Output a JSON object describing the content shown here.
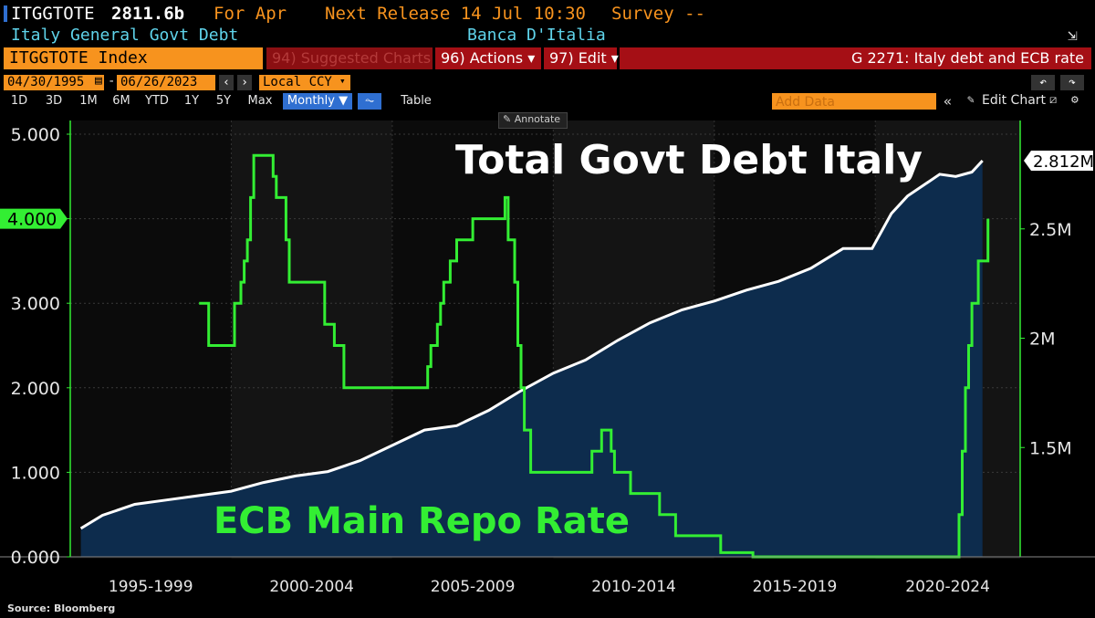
{
  "header": {
    "ticker": "ITGGTOTE",
    "last_value": "2811.6b",
    "for_label": "For Apr",
    "next_release": "Next Release 14 Jul 10:30",
    "survey": "Survey --",
    "description": "Italy General Govt Debt",
    "source_agency": "Banca D'Italia"
  },
  "command_bar": {
    "security": "ITGGTOTE Index",
    "suggested": "94) Suggested Charts",
    "actions": "96) Actions ▾",
    "edit": "97) Edit ▾",
    "chart_id": "G 2271: Italy debt and ECB rate"
  },
  "date_bar": {
    "start_date": "04/30/1995",
    "end_date": "06/26/2023",
    "currency": "Local CCY"
  },
  "range_buttons": [
    "1D",
    "3D",
    "1M",
    "6M",
    "YTD",
    "1Y",
    "5Y",
    "Max"
  ],
  "period_select": "Monthly ▼",
  "table_button": "Table",
  "add_data_placeholder": "Add Data",
  "edit_chart": "Edit Chart",
  "annotate": "Annotate",
  "source_note": "Source: Bloomberg",
  "colors": {
    "debt": "#ffffff",
    "rate": "#33ee33",
    "area": "#0d2c4d",
    "accent": "#f7931e"
  },
  "chart_data": {
    "type": "line",
    "title": "Total Govt Debt Italy",
    "annotation": "ECB Main Repo Rate",
    "x_tick_labels": [
      "1995-1999",
      "2000-2004",
      "2005-2009",
      "2010-2014",
      "2015-2019",
      "2020-2024"
    ],
    "left_axis": {
      "ticks": [
        "0.000",
        "1.000",
        "2.000",
        "3.000",
        "4.000",
        "5.000"
      ],
      "ylim": [
        0,
        5
      ],
      "highlight": "4.000"
    },
    "right_axis": {
      "ticks": [
        "1.5M",
        "2M",
        "2.5M"
      ],
      "ylim": [
        1000000,
        3000000
      ],
      "last_label": "2.812M"
    },
    "series": [
      {
        "axis": "right",
        "style": "area",
        "x": [
          1995.33,
          1996,
          1997,
          1998,
          1999,
          2000,
          2001,
          2002,
          2003,
          2004,
          2005,
          2006,
          2007,
          2008,
          2009,
          2010,
          2011,
          2012,
          2013,
          2014,
          2015,
          2016,
          2017,
          2018,
          2019,
          2019.9,
          2020.5,
          2021,
          2021.5,
          2022,
          2022.5,
          2023,
          2023.33
        ],
        "values": [
          1130000,
          1190000,
          1240000,
          1260000,
          1280000,
          1300000,
          1340000,
          1370000,
          1390000,
          1440000,
          1510000,
          1580000,
          1600000,
          1670000,
          1760000,
          1840000,
          1900000,
          1990000,
          2070000,
          2130000,
          2170000,
          2220000,
          2260000,
          2320000,
          2410000,
          2410000,
          2570000,
          2650000,
          2700000,
          2750000,
          2740000,
          2760000,
          2812000
        ]
      },
      {
        "axis": "left",
        "style": "step",
        "x": [
          1999.0,
          1999.3,
          1999.9,
          2000.1,
          2000.3,
          2000.4,
          2000.5,
          2000.6,
          2000.7,
          2001.3,
          2001.4,
          2001.7,
          2001.8,
          2001.9,
          2002.9,
          2003.2,
          2003.5,
          2005.9,
          2006.1,
          2006.2,
          2006.4,
          2006.5,
          2006.6,
          2006.8,
          2007.0,
          2007.5,
          2008.5,
          2008.6,
          2008.8,
          2008.9,
          2009.0,
          2009.1,
          2009.3,
          2011.2,
          2011.5,
          2011.8,
          2011.9,
          2012.4,
          2013.3,
          2013.8,
          2015.2,
          2016.2,
          2022.5,
          2022.6,
          2022.7,
          2022.8,
          2022.9,
          2023.0,
          2023.2,
          2023.5
        ],
        "values": [
          3.0,
          2.5,
          2.5,
          3.0,
          3.25,
          3.5,
          3.75,
          4.25,
          4.75,
          4.5,
          4.25,
          3.75,
          3.25,
          3.25,
          2.75,
          2.5,
          2.0,
          2.0,
          2.25,
          2.5,
          2.75,
          3.0,
          3.25,
          3.5,
          3.75,
          4.0,
          4.25,
          3.75,
          3.25,
          2.5,
          2.0,
          1.5,
          1.0,
          1.25,
          1.5,
          1.25,
          1.0,
          0.75,
          0.5,
          0.25,
          0.05,
          0.0,
          0.0,
          0.5,
          1.25,
          2.0,
          2.5,
          3.0,
          3.5,
          4.0
        ]
      }
    ]
  }
}
